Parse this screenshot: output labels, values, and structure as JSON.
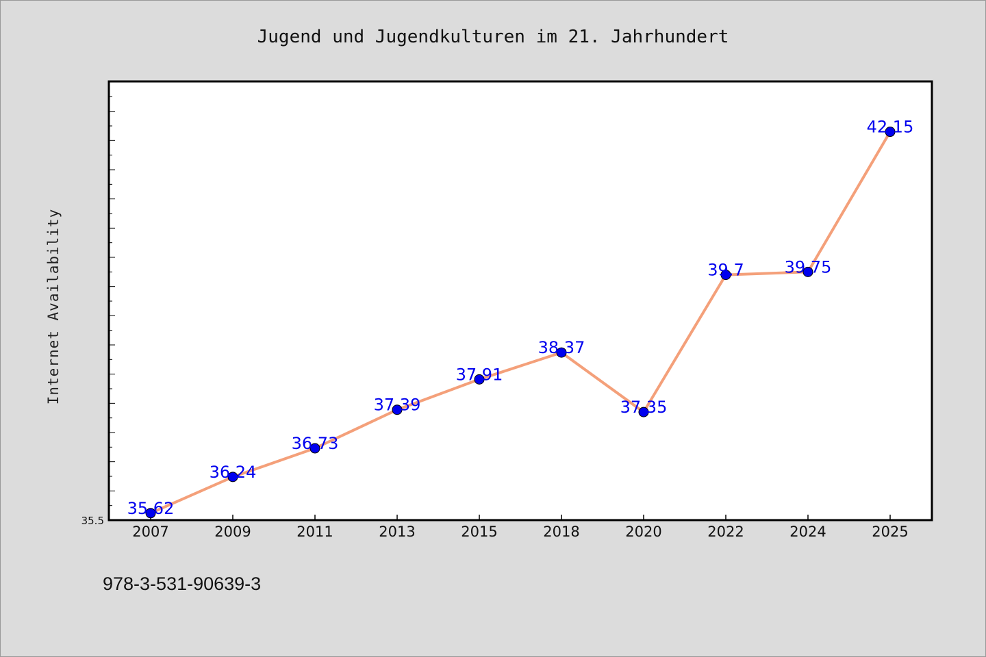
{
  "chart_data": {
    "type": "line",
    "title": "Jugend und Jugendkulturen im 21. Jahrhundert",
    "xlabel": "",
    "ylabel": "Internet Availability",
    "categories": [
      "2007",
      "2009",
      "2011",
      "2013",
      "2015",
      "2018",
      "2020",
      "2022",
      "2024",
      "2025"
    ],
    "series": [
      {
        "values": [
          35.62,
          36.24,
          36.73,
          37.39,
          37.91,
          38.37,
          37.35,
          39.7,
          39.75,
          42.15
        ],
        "labels": [
          "35.62",
          "36.24",
          "36.73",
          "37.39",
          "37.91",
          "38.37",
          "37.35",
          "39.7",
          "39.75",
          "42.15"
        ],
        "line_color": "#f4a07a",
        "marker_color": "#0000ee"
      }
    ],
    "ylim": [
      35.5,
      43.0
    ],
    "ytick_labels": [
      "35.5"
    ],
    "grid": false,
    "legend": "none"
  },
  "footer": {
    "isbn": "978-3-531-90639-3"
  }
}
